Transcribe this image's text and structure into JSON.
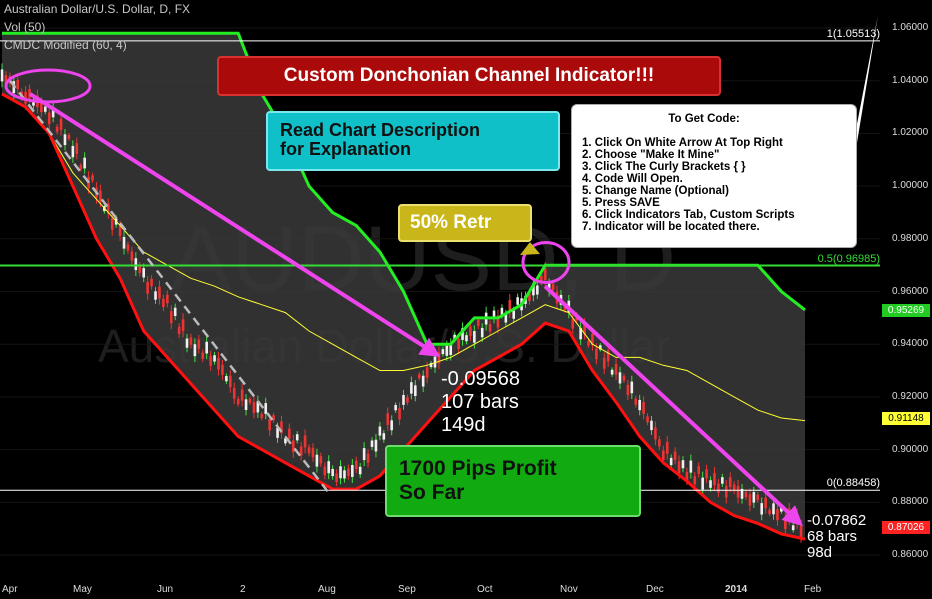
{
  "header": {
    "symbol_line": "Australian Dollar/U.S. Dollar, D, FX",
    "indicator_1": "Vol (50)",
    "indicator_2": "CMDC Modified (60, 4)"
  },
  "watermark": {
    "symbol": "AUDUSD, D",
    "name": "Australian Dollar/U.S. Dollar"
  },
  "annotations": {
    "title_banner": "Custom Donchonian Channel Indicator!!!",
    "read_description": "Read Chart Description\nfor Explanation",
    "retracement_label": "50% Retr",
    "profit_label": "1700 Pips Profit\nSo Far",
    "measure_1": "-0.09568\n107 bars\n149d",
    "measure_2": "-0.07862\n68 bars\n98d",
    "instructions_title": "To Get Code:",
    "instructions": [
      "1. Click On White Arrow At Top Right",
      "2. Choose \"Make It Mine\"",
      "3. Click The Curly Brackets { }",
      "4. Code Will Open.",
      "5. Change Name (Optional)",
      "5. Press SAVE",
      "6. Click Indicators Tab, Custom Scripts",
      "7. Indicator will be located there."
    ]
  },
  "levels": [
    {
      "label": "1(1.05513)",
      "value": 1.05513,
      "color": "#ffffff"
    },
    {
      "label": "0.5(0.96985)",
      "value": 0.96985,
      "color": "#33dd33"
    },
    {
      "label": "0(0.88458)",
      "value": 0.88458,
      "color": "#ffffff"
    }
  ],
  "price_tags": [
    {
      "text": "0.95269",
      "value": 0.95269,
      "bg": "#22cc22",
      "fg": "#ffffff"
    },
    {
      "text": "0.91148",
      "value": 0.91148,
      "bg": "#ffff33",
      "fg": "#000000"
    },
    {
      "text": "0.87026",
      "value": 0.87026,
      "bg": "#ff2222",
      "fg": "#ffffff"
    }
  ],
  "colors": {
    "upper_band": "#22ee22",
    "lower_band": "#ff1111",
    "mid_line": "#ffff33",
    "channel_fill": "#3a3a3a",
    "trend_arrow": "#ee44ee",
    "dashed_line": "#bbbbbb"
  },
  "chart_data": {
    "type": "line",
    "title": "Australian Dollar/U.S. Dollar, D, FX",
    "xlabel": "",
    "ylabel": "",
    "ylim": [
      0.855,
      1.065
    ],
    "x_ticks": [
      "Apr",
      "May",
      "Jun",
      "2",
      "Aug",
      "Sep",
      "Oct",
      "Nov",
      "Dec",
      "2014",
      "Feb"
    ],
    "y_ticks": [
      "1.06000",
      "1.04000",
      "1.02000",
      "1.00000",
      "0.98000",
      "0.96000",
      "0.94000",
      "0.92000",
      "0.90000",
      "0.88000",
      "0.86000"
    ],
    "y_tick_values": [
      1.06,
      1.04,
      1.02,
      1.0,
      0.98,
      0.96,
      0.94,
      0.92,
      0.9,
      0.88,
      0.86
    ],
    "x_index": [
      0,
      6,
      12,
      18,
      24,
      30,
      36,
      42,
      48,
      54,
      60,
      66,
      72,
      78,
      84,
      90,
      96,
      102,
      108,
      114,
      120,
      126,
      132,
      138,
      144,
      150,
      156,
      162,
      168,
      174,
      180,
      186,
      192,
      198,
      204
    ],
    "series": [
      {
        "name": "CMDC upper",
        "values": [
          1.058,
          1.058,
          1.058,
          1.058,
          1.058,
          1.058,
          1.058,
          1.058,
          1.058,
          1.058,
          1.058,
          1.035,
          1.02,
          1.0,
          0.99,
          0.985,
          0.975,
          0.96,
          0.94,
          0.94,
          0.95,
          0.95,
          0.955,
          0.97,
          0.97,
          0.97,
          0.97,
          0.97,
          0.97,
          0.97,
          0.97,
          0.97,
          0.97,
          0.96,
          0.953
        ]
      },
      {
        "name": "CMDC mid",
        "values": [
          1.035,
          1.03,
          1.02,
          1.005,
          0.995,
          0.985,
          0.975,
          0.97,
          0.965,
          0.962,
          0.958,
          0.955,
          0.952,
          0.945,
          0.94,
          0.935,
          0.93,
          0.93,
          0.932,
          0.935,
          0.94,
          0.945,
          0.95,
          0.955,
          0.952,
          0.94,
          0.935,
          0.935,
          0.932,
          0.93,
          0.925,
          0.92,
          0.915,
          0.912,
          0.911
        ]
      },
      {
        "name": "CMDC lower",
        "values": [
          1.035,
          1.03,
          1.02,
          1.0,
          0.98,
          0.965,
          0.945,
          0.935,
          0.925,
          0.915,
          0.905,
          0.9,
          0.895,
          0.89,
          0.885,
          0.885,
          0.89,
          0.9,
          0.91,
          0.92,
          0.93,
          0.935,
          0.94,
          0.948,
          0.945,
          0.93,
          0.918,
          0.905,
          0.895,
          0.888,
          0.88,
          0.875,
          0.872,
          0.868,
          0.866
        ]
      },
      {
        "name": "Close",
        "values": [
          1.042,
          1.035,
          1.028,
          1.015,
          0.998,
          0.982,
          0.965,
          0.955,
          0.94,
          0.935,
          0.92,
          0.915,
          0.905,
          0.9,
          0.89,
          0.892,
          0.905,
          0.918,
          0.93,
          0.94,
          0.945,
          0.95,
          0.955,
          0.965,
          0.952,
          0.94,
          0.93,
          0.918,
          0.9,
          0.892,
          0.888,
          0.885,
          0.88,
          0.875,
          0.87
        ]
      }
    ]
  }
}
